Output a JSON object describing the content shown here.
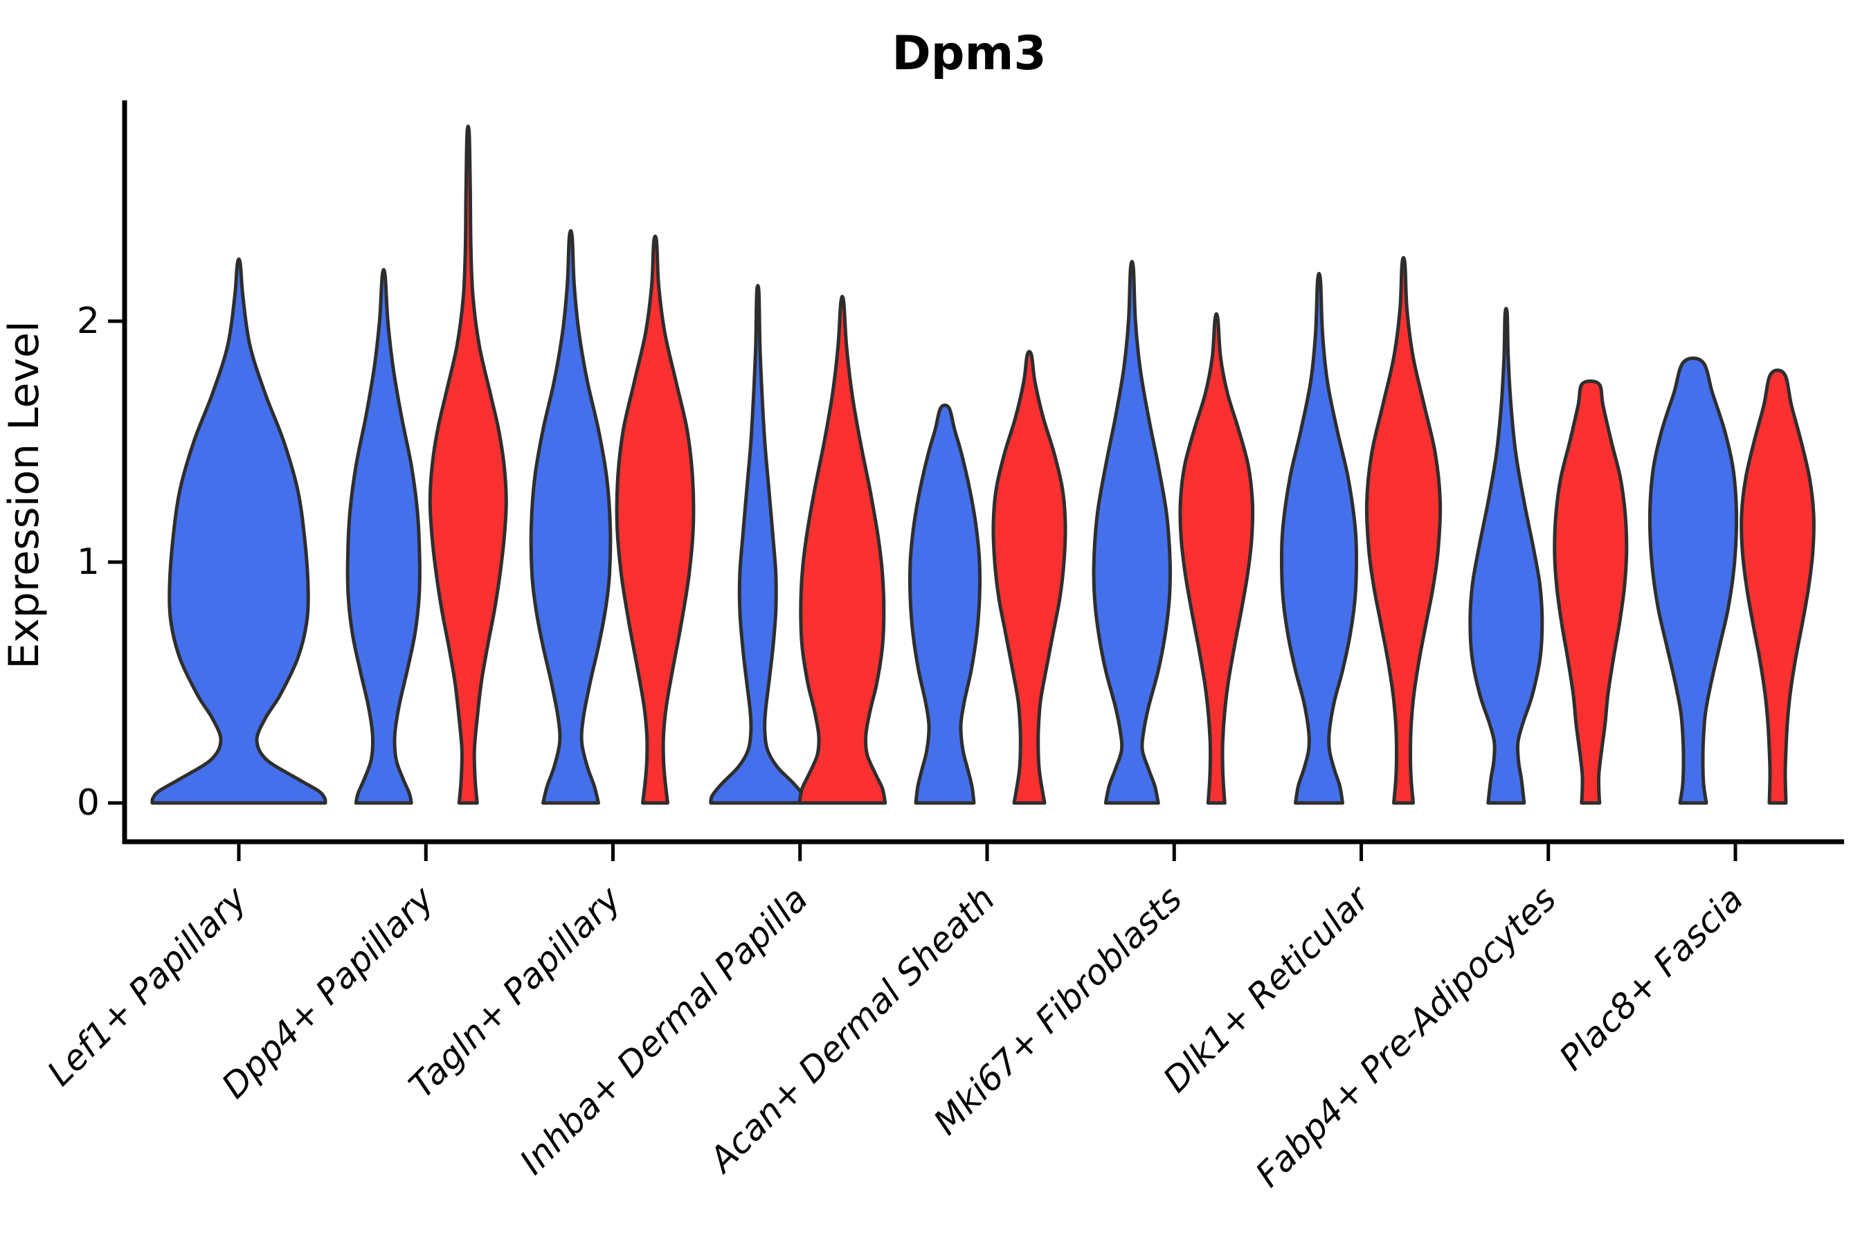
{
  "title": "Dpm3",
  "y_axis": {
    "label": "Expression Level",
    "ticks": [
      {
        "value": 0,
        "label": "0"
      },
      {
        "value": 1,
        "label": "1"
      },
      {
        "value": 2,
        "label": "2"
      }
    ]
  },
  "colors": {
    "blue": "#4570EC",
    "red": "#FB3030",
    "violin_outline": "#2e2e2e",
    "axis": "#000000"
  },
  "chart_data": {
    "type": "violin",
    "title": "Dpm3",
    "xlabel": "",
    "ylabel": "Expression Level",
    "ylim": [
      0,
      2.92
    ],
    "yticks": [
      0,
      1,
      2
    ],
    "grid": false,
    "legend_position": "none",
    "categories": [
      "Lef1+ Papillary",
      "Dpp4+ Papillary",
      "Tagln+ Papillary",
      "Inhba+ Dermal Papilla",
      "Acan+ Dermal Sheath",
      "Mki67+ Fibroblasts",
      "Dlk1+ Reticular",
      "Fabp4+ Pre-Adipocytes",
      "Plac8+ Fascia"
    ],
    "groups": [
      {
        "name": "blue",
        "color": "#4570EC"
      },
      {
        "name": "red",
        "color": "#FB3030"
      }
    ],
    "violins": [
      {
        "category": "Lef1+ Papillary",
        "group": "blue",
        "full_width": true,
        "max_expression": 2.24,
        "profile": [
          [
            2.24,
            2
          ],
          [
            2.1,
            6
          ],
          [
            1.9,
            16
          ],
          [
            1.7,
            38
          ],
          [
            1.5,
            65
          ],
          [
            1.3,
            85
          ],
          [
            1.1,
            95
          ],
          [
            0.9,
            100
          ],
          [
            0.75,
            98
          ],
          [
            0.6,
            85
          ],
          [
            0.45,
            60
          ],
          [
            0.35,
            38
          ],
          [
            0.26,
            26
          ],
          [
            0.18,
            40
          ],
          [
            0.1,
            85
          ],
          [
            0.05,
            115
          ],
          [
            0.02,
            124
          ],
          [
            0,
            125
          ]
        ]
      },
      {
        "category": "Dpp4+ Papillary",
        "group": "blue",
        "full_width": false,
        "max_expression": 2.19,
        "profile": [
          [
            2.19,
            2
          ],
          [
            2.0,
            6
          ],
          [
            1.8,
            14
          ],
          [
            1.6,
            26
          ],
          [
            1.4,
            40
          ],
          [
            1.2,
            49
          ],
          [
            1.0,
            52
          ],
          [
            0.85,
            51
          ],
          [
            0.7,
            45
          ],
          [
            0.55,
            34
          ],
          [
            0.4,
            22
          ],
          [
            0.28,
            16
          ],
          [
            0.18,
            18
          ],
          [
            0.1,
            28
          ],
          [
            0.04,
            37
          ],
          [
            0,
            40
          ]
        ]
      },
      {
        "category": "Dpp4+ Papillary",
        "group": "red",
        "full_width": false,
        "max_expression": 2.78,
        "profile": [
          [
            2.78,
            1.5
          ],
          [
            2.55,
            3
          ],
          [
            2.3,
            4
          ],
          [
            2.1,
            7
          ],
          [
            1.9,
            16
          ],
          [
            1.7,
            32
          ],
          [
            1.55,
            44
          ],
          [
            1.4,
            52
          ],
          [
            1.25,
            55
          ],
          [
            1.1,
            52
          ],
          [
            0.95,
            46
          ],
          [
            0.8,
            38
          ],
          [
            0.65,
            28
          ],
          [
            0.5,
            19
          ],
          [
            0.35,
            13
          ],
          [
            0.22,
            9
          ],
          [
            0.1,
            10
          ],
          [
            0,
            13
          ]
        ]
      },
      {
        "category": "Tagln+ Papillary",
        "group": "blue",
        "full_width": false,
        "max_expression": 2.35,
        "profile": [
          [
            2.35,
            2
          ],
          [
            2.15,
            5
          ],
          [
            1.95,
            12
          ],
          [
            1.75,
            24
          ],
          [
            1.55,
            40
          ],
          [
            1.35,
            52
          ],
          [
            1.15,
            57
          ],
          [
            0.95,
            56
          ],
          [
            0.8,
            50
          ],
          [
            0.65,
            40
          ],
          [
            0.5,
            28
          ],
          [
            0.35,
            18
          ],
          [
            0.25,
            16
          ],
          [
            0.15,
            24
          ],
          [
            0.07,
            34
          ],
          [
            0,
            40
          ]
        ]
      },
      {
        "category": "Tagln+ Papillary",
        "group": "red",
        "full_width": false,
        "max_expression": 2.33,
        "profile": [
          [
            2.33,
            2
          ],
          [
            2.15,
            5
          ],
          [
            1.95,
            14
          ],
          [
            1.75,
            30
          ],
          [
            1.55,
            46
          ],
          [
            1.35,
            54
          ],
          [
            1.15,
            55
          ],
          [
            0.95,
            49
          ],
          [
            0.75,
            38
          ],
          [
            0.55,
            25
          ],
          [
            0.4,
            16
          ],
          [
            0.28,
            12
          ],
          [
            0.18,
            12
          ],
          [
            0.1,
            14
          ],
          [
            0,
            18
          ]
        ]
      },
      {
        "category": "Inhba+ Dermal Papilla",
        "group": "blue",
        "full_width": false,
        "max_expression": 2.12,
        "profile": [
          [
            2.12,
            1.5
          ],
          [
            1.9,
            3
          ],
          [
            1.7,
            6
          ],
          [
            1.5,
            10
          ],
          [
            1.3,
            16
          ],
          [
            1.1,
            22
          ],
          [
            0.95,
            26
          ],
          [
            0.8,
            26
          ],
          [
            0.65,
            22
          ],
          [
            0.5,
            16
          ],
          [
            0.38,
            11
          ],
          [
            0.3,
            10
          ],
          [
            0.22,
            14
          ],
          [
            0.15,
            28
          ],
          [
            0.08,
            52
          ],
          [
            0.03,
            66
          ],
          [
            0,
            68
          ]
        ]
      },
      {
        "category": "Inhba+ Dermal Papilla",
        "group": "red",
        "full_width": false,
        "max_expression": 2.08,
        "profile": [
          [
            2.08,
            2
          ],
          [
            1.9,
            6
          ],
          [
            1.7,
            14
          ],
          [
            1.5,
            26
          ],
          [
            1.3,
            40
          ],
          [
            1.1,
            52
          ],
          [
            0.95,
            58
          ],
          [
            0.8,
            60
          ],
          [
            0.65,
            58
          ],
          [
            0.5,
            50
          ],
          [
            0.38,
            40
          ],
          [
            0.28,
            34
          ],
          [
            0.2,
            36
          ],
          [
            0.12,
            48
          ],
          [
            0.06,
            58
          ],
          [
            0,
            62
          ]
        ]
      },
      {
        "category": "Acan+ Dermal Sheath",
        "group": "blue",
        "full_width": false,
        "max_expression": 1.64,
        "profile": [
          [
            1.64,
            6
          ],
          [
            1.55,
            14
          ],
          [
            1.45,
            24
          ],
          [
            1.3,
            36
          ],
          [
            1.15,
            45
          ],
          [
            1.0,
            50
          ],
          [
            0.85,
            50
          ],
          [
            0.7,
            46
          ],
          [
            0.55,
            38
          ],
          [
            0.42,
            28
          ],
          [
            0.32,
            23
          ],
          [
            0.22,
            26
          ],
          [
            0.14,
            33
          ],
          [
            0.07,
            39
          ],
          [
            0,
            42
          ]
        ]
      },
      {
        "category": "Acan+ Dermal Sheath",
        "group": "red",
        "full_width": false,
        "max_expression": 1.86,
        "profile": [
          [
            1.86,
            3
          ],
          [
            1.75,
            8
          ],
          [
            1.6,
            20
          ],
          [
            1.45,
            36
          ],
          [
            1.3,
            48
          ],
          [
            1.15,
            52
          ],
          [
            1.0,
            50
          ],
          [
            0.85,
            44
          ],
          [
            0.7,
            34
          ],
          [
            0.55,
            24
          ],
          [
            0.42,
            16
          ],
          [
            0.3,
            13
          ],
          [
            0.2,
            13
          ],
          [
            0.12,
            15
          ],
          [
            0,
            22
          ]
        ]
      },
      {
        "category": "Mki67+ Fibroblasts",
        "group": "blue",
        "full_width": false,
        "max_expression": 2.22,
        "profile": [
          [
            2.22,
            2
          ],
          [
            2.0,
            5
          ],
          [
            1.8,
            12
          ],
          [
            1.6,
            24
          ],
          [
            1.4,
            38
          ],
          [
            1.2,
            50
          ],
          [
            1.0,
            55
          ],
          [
            0.85,
            54
          ],
          [
            0.7,
            48
          ],
          [
            0.55,
            38
          ],
          [
            0.4,
            24
          ],
          [
            0.3,
            17
          ],
          [
            0.22,
            15
          ],
          [
            0.14,
            24
          ],
          [
            0.07,
            33
          ],
          [
            0,
            38
          ]
        ]
      },
      {
        "category": "Mki67+ Fibroblasts",
        "group": "red",
        "full_width": false,
        "max_expression": 2.01,
        "profile": [
          [
            2.01,
            2
          ],
          [
            1.85,
            6
          ],
          [
            1.7,
            16
          ],
          [
            1.55,
            32
          ],
          [
            1.4,
            46
          ],
          [
            1.25,
            52
          ],
          [
            1.1,
            51
          ],
          [
            0.95,
            45
          ],
          [
            0.8,
            36
          ],
          [
            0.65,
            26
          ],
          [
            0.5,
            17
          ],
          [
            0.38,
            12
          ],
          [
            0.25,
            9
          ],
          [
            0.15,
            9
          ],
          [
            0.08,
            10
          ],
          [
            0,
            12
          ]
        ]
      },
      {
        "category": "Dlk1+ Reticular",
        "group": "blue",
        "full_width": false,
        "max_expression": 2.17,
        "profile": [
          [
            2.17,
            2
          ],
          [
            1.95,
            5
          ],
          [
            1.75,
            12
          ],
          [
            1.55,
            26
          ],
          [
            1.35,
            42
          ],
          [
            1.15,
            52
          ],
          [
            1.0,
            54
          ],
          [
            0.85,
            52
          ],
          [
            0.7,
            45
          ],
          [
            0.55,
            34
          ],
          [
            0.42,
            22
          ],
          [
            0.3,
            15
          ],
          [
            0.22,
            15
          ],
          [
            0.14,
            22
          ],
          [
            0.07,
            30
          ],
          [
            0,
            34
          ]
        ]
      },
      {
        "category": "Dlk1+ Reticular",
        "group": "red",
        "full_width": false,
        "max_expression": 2.24,
        "profile": [
          [
            2.24,
            2
          ],
          [
            2.05,
            5
          ],
          [
            1.85,
            14
          ],
          [
            1.65,
            30
          ],
          [
            1.45,
            46
          ],
          [
            1.25,
            53
          ],
          [
            1.05,
            50
          ],
          [
            0.9,
            43
          ],
          [
            0.75,
            33
          ],
          [
            0.6,
            23
          ],
          [
            0.45,
            15
          ],
          [
            0.32,
            11
          ],
          [
            0.2,
            10
          ],
          [
            0.1,
            11
          ],
          [
            0,
            14
          ]
        ]
      },
      {
        "category": "Fabp4+ Pre-Adipocytes",
        "group": "blue",
        "full_width": false,
        "max_expression": 2.03,
        "profile": [
          [
            2.03,
            1.5
          ],
          [
            1.85,
            3
          ],
          [
            1.65,
            7
          ],
          [
            1.45,
            14
          ],
          [
            1.25,
            26
          ],
          [
            1.05,
            40
          ],
          [
            0.9,
            49
          ],
          [
            0.75,
            52
          ],
          [
            0.6,
            49
          ],
          [
            0.45,
            38
          ],
          [
            0.33,
            24
          ],
          [
            0.25,
            17
          ],
          [
            0.17,
            18
          ],
          [
            0.1,
            22
          ],
          [
            0,
            26
          ]
        ]
      },
      {
        "category": "Fabp4+ Pre-Adipocytes",
        "group": "red",
        "full_width": false,
        "max_expression": 1.74,
        "profile": [
          [
            1.74,
            12
          ],
          [
            1.65,
            18
          ],
          [
            1.5,
            30
          ],
          [
            1.35,
            43
          ],
          [
            1.2,
            50
          ],
          [
            1.05,
            52
          ],
          [
            0.9,
            49
          ],
          [
            0.75,
            42
          ],
          [
            0.6,
            33
          ],
          [
            0.45,
            25
          ],
          [
            0.33,
            21
          ],
          [
            0.22,
            16
          ],
          [
            0.12,
            12
          ],
          [
            0.05,
            12
          ],
          [
            0,
            13
          ]
        ]
      },
      {
        "category": "Plac8+ Fascia",
        "group": "blue",
        "full_width": false,
        "max_expression": 1.83,
        "profile": [
          [
            1.83,
            14
          ],
          [
            1.7,
            28
          ],
          [
            1.55,
            45
          ],
          [
            1.4,
            57
          ],
          [
            1.25,
            62
          ],
          [
            1.1,
            62
          ],
          [
            0.95,
            58
          ],
          [
            0.8,
            50
          ],
          [
            0.65,
            38
          ],
          [
            0.5,
            26
          ],
          [
            0.38,
            18
          ],
          [
            0.28,
            15
          ],
          [
            0.18,
            14
          ],
          [
            0.08,
            15
          ],
          [
            0,
            19
          ]
        ]
      },
      {
        "category": "Plac8+ Fascia",
        "group": "red",
        "full_width": false,
        "max_expression": 1.78,
        "profile": [
          [
            1.78,
            10
          ],
          [
            1.65,
            20
          ],
          [
            1.5,
            34
          ],
          [
            1.35,
            46
          ],
          [
            1.2,
            52
          ],
          [
            1.05,
            51
          ],
          [
            0.9,
            45
          ],
          [
            0.75,
            36
          ],
          [
            0.6,
            26
          ],
          [
            0.45,
            18
          ],
          [
            0.33,
            14
          ],
          [
            0.22,
            12
          ],
          [
            0.12,
            11
          ],
          [
            0,
            12
          ]
        ]
      }
    ]
  }
}
